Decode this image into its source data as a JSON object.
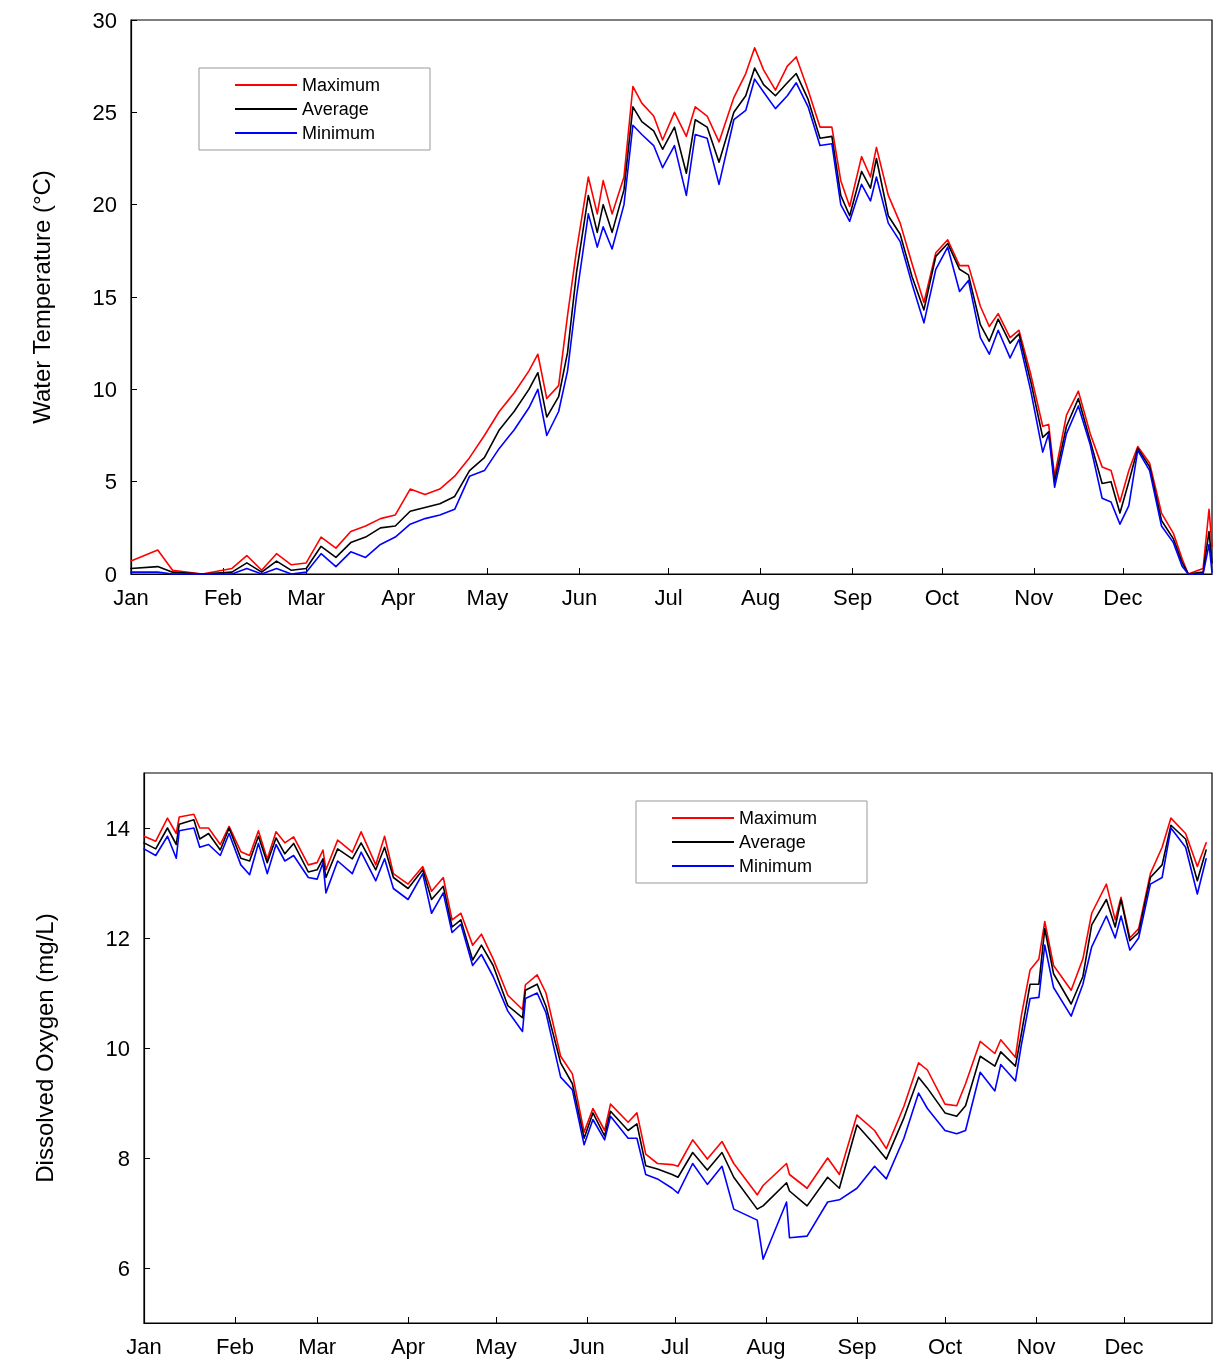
{
  "chart_data": [
    {
      "type": "line",
      "ylabel": "Water Temperature (°C)",
      "xlim": [
        "--01-01",
        "--12-31"
      ],
      "xticks": [
        {
          "value": "--01-01",
          "label": "Jan"
        },
        {
          "value": "--02-01",
          "label": "Feb"
        },
        {
          "value": "--03-01",
          "label": "Mar"
        },
        {
          "value": "--04-01",
          "label": "Apr"
        },
        {
          "value": "--05-01",
          "label": "May"
        },
        {
          "value": "--06-01",
          "label": "Jun"
        },
        {
          "value": "--07-01",
          "label": "Jul"
        },
        {
          "value": "--08-01",
          "label": "Aug"
        },
        {
          "value": "--09-01",
          "label": "Sep"
        },
        {
          "value": "--10-01",
          "label": "Oct"
        },
        {
          "value": "--11-01",
          "label": "Nov"
        },
        {
          "value": "--12-01",
          "label": "Dec"
        }
      ],
      "ylim": [
        0,
        30
      ],
      "yticks": [
        0,
        5,
        10,
        15,
        20,
        25,
        30
      ],
      "grid": false,
      "legend": "top left",
      "marker": "none",
      "line_style": "solid",
      "x": [
        "--01-01",
        "--01-10",
        "--01-15",
        "--01-25",
        "--02-04",
        "--02-09",
        "--02-14",
        "--02-19",
        "--02-24",
        "--03-01",
        "--03-06",
        "--03-11",
        "--03-16",
        "--03-21",
        "--03-26",
        "--03-31",
        "--04-05",
        "--04-10",
        "--04-15",
        "--04-20",
        "--04-25",
        "--04-30",
        "--05-05",
        "--05-10",
        "--05-15",
        "--05-18",
        "--05-21",
        "--05-25",
        "--05-28",
        "--05-31",
        "--06-04",
        "--06-07",
        "--06-09",
        "--06-12",
        "--06-16",
        "--06-19",
        "--06-22",
        "--06-26",
        "--06-29",
        "--07-03",
        "--07-07",
        "--07-10",
        "--07-14",
        "--07-18",
        "--07-23",
        "--07-27",
        "--07-30",
        "--08-02",
        "--08-06",
        "--08-10",
        "--08-13",
        "--08-17",
        "--08-21",
        "--08-25",
        "--08-28",
        "--08-31",
        "--09-04",
        "--09-07",
        "--09-09",
        "--09-13",
        "--09-17",
        "--09-21",
        "--09-25",
        "--09-29",
        "--10-03",
        "--10-07",
        "--10-10",
        "--10-14",
        "--10-17",
        "--10-20",
        "--10-24",
        "--10-27",
        "--10-31",
        "--11-04",
        "--11-06",
        "--11-08",
        "--11-12",
        "--11-16",
        "--11-20",
        "--11-24",
        "--11-27",
        "--11-30",
        "--12-03",
        "--12-06",
        "--12-10",
        "--12-14",
        "--12-18",
        "--12-21",
        "--12-23",
        "--12-28",
        "--12-30",
        "--12-31"
      ],
      "series": [
        {
          "name": "Maximum",
          "color": "#ff0000",
          "values": [
            0.7,
            1.3,
            0.2,
            0,
            0.3,
            1.0,
            0.2,
            1.1,
            0.5,
            0.6,
            2.0,
            1.4,
            2.3,
            2.6,
            3.0,
            3.2,
            4.6,
            4.3,
            4.6,
            5.3,
            6.3,
            7.5,
            8.8,
            9.8,
            11.0,
            11.9,
            9.5,
            10.2,
            14,
            17.5,
            21.5,
            19.5,
            21.3,
            19.5,
            21.5,
            26.4,
            25.5,
            24.8,
            23.5,
            25.0,
            23.7,
            25.3,
            24.8,
            23.4,
            25.8,
            27.1,
            28.5,
            27.3,
            26.2,
            27.5,
            28.0,
            26.2,
            24.2,
            24.2,
            21.3,
            19.9,
            22.6,
            21.5,
            23.1,
            20.5,
            19.0,
            16.8,
            14.7,
            17.4,
            18.1,
            16.7,
            16.7,
            14.5,
            13.4,
            14.1,
            12.8,
            13.2,
            10.8,
            8.0,
            8.1,
            5.3,
            8.6,
            9.9,
            7.6,
            5.8,
            5.6,
            3.9,
            5.6,
            6.9,
            6.0,
            3.3,
            2.2,
            0.8,
            0,
            0.3,
            3.5,
            1.5
          ]
        },
        {
          "name": "Average",
          "color": "#000000",
          "values": [
            0.3,
            0.4,
            0.1,
            0,
            0.1,
            0.6,
            0.1,
            0.7,
            0.2,
            0.3,
            1.5,
            0.9,
            1.7,
            2.0,
            2.5,
            2.6,
            3.4,
            3.6,
            3.8,
            4.2,
            5.6,
            6.3,
            7.8,
            8.8,
            10.0,
            10.9,
            8.5,
            9.6,
            12,
            16.3,
            20.5,
            18.5,
            20.0,
            18.5,
            20.8,
            25.3,
            24.5,
            24.0,
            23.0,
            24.2,
            21.7,
            24.6,
            24.2,
            22.3,
            25.0,
            25.9,
            27.4,
            26.5,
            25.9,
            26.6,
            27.1,
            25.7,
            23.6,
            23.7,
            20.5,
            19.4,
            21.8,
            20.9,
            22.5,
            19.4,
            18.4,
            16.1,
            14.3,
            17.2,
            17.9,
            16.5,
            16.2,
            13.5,
            12.6,
            13.8,
            12.5,
            13.0,
            10.4,
            7.4,
            7.7,
            5.0,
            8.0,
            9.5,
            7.2,
            4.9,
            5.0,
            3.3,
            5.0,
            6.8,
            5.8,
            2.9,
            1.9,
            0.6,
            0,
            0.1,
            2.3,
            0.6
          ]
        },
        {
          "name": "Minimum",
          "color": "#0000ff",
          "values": [
            0.1,
            0.1,
            0,
            null,
            0,
            0.3,
            0,
            0.3,
            0,
            0.1,
            1.1,
            0.4,
            1.2,
            0.9,
            1.6,
            2.0,
            2.7,
            3.0,
            3.2,
            3.5,
            5.3,
            5.6,
            6.8,
            7.8,
            9.0,
            10.0,
            7.5,
            8.8,
            11,
            15,
            19.5,
            17.7,
            18.8,
            17.6,
            20.0,
            24.3,
            23.8,
            23.2,
            22.0,
            23.2,
            20.5,
            23.8,
            23.6,
            21.1,
            24.6,
            25.1,
            26.8,
            26.1,
            25.2,
            25.9,
            26.6,
            25.3,
            23.2,
            23.3,
            20.0,
            19.1,
            21.1,
            20.2,
            21.5,
            19.0,
            18.0,
            15.7,
            13.6,
            16.5,
            17.7,
            15.3,
            15.9,
            12.8,
            11.9,
            13.2,
            11.7,
            12.7,
            9.9,
            6.6,
            7.6,
            4.7,
            7.6,
            9.1,
            7.0,
            4.1,
            3.9,
            2.7,
            3.7,
            6.7,
            5.6,
            2.6,
            1.7,
            0.4,
            0,
            0,
            1.6,
            0.1
          ]
        }
      ]
    },
    {
      "type": "line",
      "ylabel": "Dissolved Oxygen (mg/L)",
      "xlim": [
        "--01-01",
        "--12-31"
      ],
      "xticks": [
        {
          "value": "--01-01",
          "label": "Jan"
        },
        {
          "value": "--02-01",
          "label": "Feb"
        },
        {
          "value": "--03-01",
          "label": "Mar"
        },
        {
          "value": "--04-01",
          "label": "Apr"
        },
        {
          "value": "--05-01",
          "label": "May"
        },
        {
          "value": "--06-01",
          "label": "Jun"
        },
        {
          "value": "--07-01",
          "label": "Jul"
        },
        {
          "value": "--08-01",
          "label": "Aug"
        },
        {
          "value": "--09-01",
          "label": "Sep"
        },
        {
          "value": "--10-01",
          "label": "Oct"
        },
        {
          "value": "--11-01",
          "label": "Nov"
        },
        {
          "value": "--12-01",
          "label": "Dec"
        }
      ],
      "ylim": [
        5,
        15
      ],
      "yticks": [
        6,
        8,
        10,
        12,
        14
      ],
      "grid": false,
      "legend": "top",
      "marker": "none",
      "line_style": "solid",
      "x": [
        "--01-01",
        "--01-05",
        "--01-09",
        "--01-12",
        "--01-13",
        "--01-18",
        "--01-20",
        "--01-23",
        "--01-27",
        "--01-30",
        "--02-03",
        "--02-06",
        "--02-09",
        "--02-12",
        "--02-15",
        "--02-18",
        "--02-21",
        "--02-26",
        "--03-01",
        "--03-03",
        "--03-04",
        "--03-08",
        "--03-13",
        "--03-16",
        "--03-21",
        "--03-24",
        "--03-27",
        "--04-01",
        "--04-06",
        "--04-09",
        "--04-13",
        "--04-16",
        "--04-19",
        "--04-23",
        "--04-26",
        "--04-30",
        "--05-05",
        "--05-10",
        "--05-11",
        "--05-15",
        "--05-18",
        "--05-23",
        "--05-27",
        "--05-31",
        "--06-03",
        "--06-07",
        "--06-09",
        "--06-15",
        "--06-18",
        "--06-21",
        "--06-25",
        "--06-30",
        "--07-02",
        "--07-07",
        "--07-12",
        "--07-17",
        "--07-21",
        "--07-29",
        "--07-31",
        "--08-08",
        "--08-09",
        "--08-15",
        "--08-22",
        "--08-26",
        "--09-01",
        "--09-07",
        "--09-11",
        "--09-17",
        "--09-22",
        "--09-25",
        "--10-01",
        "--10-05",
        "--10-08",
        "--10-13",
        "--10-18",
        "--10-20",
        "--10-25",
        "--10-27",
        "--10-30",
        "--11-02",
        "--11-04",
        "--11-07",
        "--11-13",
        "--11-17",
        "--11-20",
        "--11-25",
        "--11-28",
        "--11-30",
        "--12-03",
        "--12-06",
        "--12-10",
        "--12-14",
        "--12-17",
        "--12-22",
        "--12-26",
        "--12-29"
      ],
      "series": [
        {
          "name": "Maximum",
          "color": "#ff0000",
          "values": [
            13.85,
            13.76,
            14.18,
            13.9,
            14.2,
            14.25,
            14.0,
            14.0,
            13.7,
            14.03,
            13.57,
            13.5,
            13.95,
            13.43,
            13.93,
            13.73,
            13.84,
            13.33,
            13.37,
            13.6,
            13.24,
            13.78,
            13.56,
            13.93,
            13.33,
            13.85,
            13.17,
            12.98,
            13.3,
            12.85,
            13.1,
            12.33,
            12.45,
            11.87,
            12.07,
            11.62,
            10.96,
            10.7,
            11.15,
            11.33,
            11.0,
            9.85,
            9.53,
            8.47,
            8.9,
            8.5,
            8.98,
            8.65,
            8.82,
            8.07,
            7.9,
            7.88,
            7.85,
            8.33,
            7.98,
            8.3,
            7.9,
            7.33,
            7.5,
            7.9,
            7.7,
            7.45,
            8.0,
            7.7,
            8.78,
            8.5,
            8.17,
            8.94,
            9.73,
            9.6,
            8.98,
            8.95,
            9.35,
            10.12,
            9.9,
            10.15,
            9.83,
            10.58,
            11.42,
            11.62,
            12.3,
            11.5,
            11.05,
            11.62,
            12.45,
            12.98,
            12.33,
            12.74,
            12.0,
            12.17,
            13.17,
            13.65,
            14.18,
            13.9,
            13.3,
            13.73
          ]
        },
        {
          "name": "Average",
          "color": "#000000",
          "values": [
            13.73,
            13.62,
            14.0,
            13.7,
            14.07,
            14.15,
            13.8,
            13.9,
            13.6,
            14.0,
            13.45,
            13.4,
            13.85,
            13.37,
            13.82,
            13.53,
            13.72,
            13.2,
            13.24,
            13.44,
            13.1,
            13.62,
            13.44,
            13.73,
            13.24,
            13.65,
            13.1,
            12.9,
            13.24,
            12.7,
            12.94,
            12.2,
            12.33,
            11.6,
            11.87,
            11.5,
            10.77,
            10.55,
            11.05,
            11.16,
            10.76,
            9.73,
            9.35,
            8.36,
            8.82,
            8.4,
            8.85,
            8.5,
            8.62,
            7.86,
            7.8,
            7.7,
            7.65,
            8.1,
            7.78,
            8.1,
            7.65,
            7.07,
            7.13,
            7.55,
            7.4,
            7.13,
            7.65,
            7.45,
            8.6,
            8.24,
            7.98,
            8.73,
            9.47,
            9.27,
            8.82,
            8.76,
            8.95,
            9.85,
            9.67,
            9.93,
            9.67,
            10.25,
            11.16,
            11.16,
            12.17,
            11.35,
            10.8,
            11.3,
            12.24,
            12.7,
            12.2,
            12.7,
            11.95,
            12.1,
            13.1,
            13.33,
            14.05,
            13.8,
            13.04,
            13.6
          ]
        },
        {
          "name": "Minimum",
          "color": "#0000ff",
          "values": [
            13.62,
            13.5,
            13.85,
            13.45,
            13.95,
            14.0,
            13.65,
            13.7,
            13.5,
            13.9,
            13.33,
            13.15,
            13.72,
            13.17,
            13.7,
            13.4,
            13.5,
            13.1,
            13.07,
            13.37,
            12.82,
            13.4,
            13.17,
            13.56,
            13.04,
            13.44,
            12.9,
            12.7,
            13.17,
            12.45,
            12.82,
            12.1,
            12.25,
            11.5,
            11.7,
            11.3,
            10.67,
            10.3,
            10.9,
            11.0,
            10.64,
            9.47,
            9.24,
            8.24,
            8.7,
            8.33,
            8.76,
            8.36,
            8.36,
            7.7,
            7.62,
            7.45,
            7.36,
            7.9,
            7.52,
            7.85,
            7.07,
            6.87,
            6.16,
            7.2,
            6.55,
            6.58,
            7.2,
            7.24,
            7.45,
            7.85,
            7.62,
            8.36,
            9.18,
            8.9,
            8.5,
            8.44,
            8.5,
            9.56,
            9.22,
            9.7,
            9.4,
            10.05,
            10.9,
            10.92,
            11.87,
            11.1,
            10.58,
            11.16,
            11.84,
            12.4,
            12.0,
            12.4,
            11.78,
            12.0,
            12.98,
            13.1,
            14.0,
            13.65,
            12.8,
            13.44
          ]
        }
      ]
    }
  ]
}
